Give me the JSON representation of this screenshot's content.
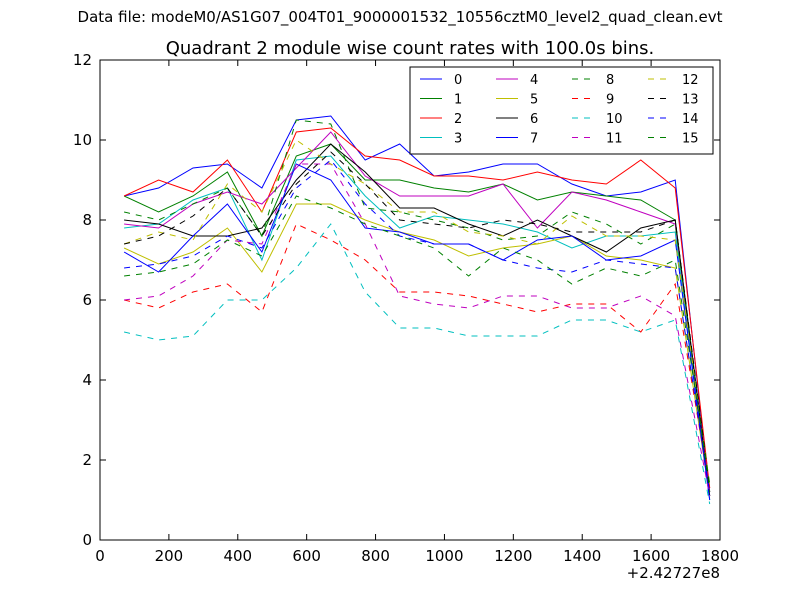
{
  "header": {
    "data_file": "Data file: modeM0/AS1G07_004T01_9000001532_10556cztM0_level2_quad_clean.evt"
  },
  "chart_data": {
    "type": "line",
    "title": "Quadrant 2 module wise count rates with 100.0s bins.",
    "xlabel": "",
    "ylabel": "",
    "x_offset_label": "+2.42727e8",
    "xlim": [
      0,
      1800
    ],
    "ylim": [
      0,
      12
    ],
    "x_ticks": [
      0,
      200,
      400,
      600,
      800,
      1000,
      1200,
      1400,
      1600,
      1800
    ],
    "y_ticks": [
      0,
      2,
      4,
      6,
      8,
      10,
      12
    ],
    "grid": false,
    "legend_placement": "top-right",
    "legend_columns": 4,
    "x": [
      70,
      170,
      270,
      370,
      470,
      570,
      670,
      770,
      870,
      970,
      1070,
      1170,
      1270,
      1370,
      1470,
      1570,
      1670,
      1770
    ],
    "series": [
      {
        "name": "0",
        "color": "#0000ff",
        "dash": "solid",
        "values": [
          8.6,
          8.8,
          9.3,
          9.4,
          8.8,
          10.5,
          10.6,
          9.5,
          9.9,
          9.1,
          9.2,
          9.4,
          9.4,
          8.9,
          8.6,
          8.7,
          9.0,
          1.1
        ]
      },
      {
        "name": "1",
        "color": "#008000",
        "dash": "solid",
        "values": [
          8.6,
          8.2,
          8.6,
          9.2,
          7.6,
          9.6,
          9.9,
          9.0,
          9.0,
          8.8,
          8.7,
          8.9,
          8.5,
          8.7,
          8.6,
          8.5,
          8.0,
          1.2
        ]
      },
      {
        "name": "2",
        "color": "#ff0000",
        "dash": "solid",
        "values": [
          8.6,
          9.0,
          8.7,
          9.5,
          8.2,
          10.2,
          10.3,
          9.6,
          9.5,
          9.1,
          9.1,
          9.0,
          9.2,
          9.0,
          8.9,
          9.5,
          8.8,
          1.3
        ]
      },
      {
        "name": "3",
        "color": "#00bfbf",
        "dash": "solid",
        "values": [
          7.8,
          7.9,
          8.5,
          8.8,
          7.0,
          9.5,
          9.6,
          8.6,
          7.8,
          8.1,
          8.0,
          7.9,
          7.7,
          7.3,
          7.6,
          7.6,
          7.7,
          1.0
        ]
      },
      {
        "name": "4",
        "color": "#bf00bf",
        "dash": "solid",
        "values": [
          7.9,
          7.8,
          8.4,
          8.7,
          8.4,
          9.3,
          10.2,
          9.1,
          8.6,
          8.6,
          8.6,
          8.9,
          7.8,
          8.7,
          8.5,
          8.2,
          7.9,
          1.2
        ]
      },
      {
        "name": "5",
        "color": "#bfbf00",
        "dash": "solid",
        "values": [
          7.3,
          6.9,
          7.2,
          7.8,
          6.7,
          8.4,
          8.4,
          8.0,
          7.7,
          7.5,
          7.1,
          7.3,
          7.4,
          7.6,
          7.1,
          7.0,
          6.8,
          1.1
        ]
      },
      {
        "name": "6",
        "color": "#000000",
        "dash": "solid",
        "values": [
          8.0,
          7.9,
          7.6,
          7.6,
          7.8,
          9.0,
          9.9,
          9.2,
          8.3,
          8.3,
          7.9,
          7.6,
          8.0,
          7.6,
          7.2,
          7.8,
          8.0,
          1.1
        ]
      },
      {
        "name": "7",
        "color": "#0000ff",
        "dash": "solid",
        "values": [
          7.2,
          6.7,
          7.6,
          8.4,
          7.2,
          9.4,
          9.0,
          7.8,
          7.7,
          7.4,
          7.4,
          7.0,
          7.5,
          7.6,
          7.0,
          7.1,
          7.5,
          1.0
        ]
      },
      {
        "name": "8",
        "color": "#008000",
        "dash": "dashed",
        "values": [
          8.2,
          8.0,
          8.4,
          8.8,
          7.6,
          10.5,
          10.4,
          8.3,
          8.2,
          8.0,
          7.8,
          7.5,
          7.6,
          8.2,
          7.9,
          7.4,
          7.9,
          1.2
        ]
      },
      {
        "name": "9",
        "color": "#ff0000",
        "dash": "dashed",
        "values": [
          6.0,
          5.8,
          6.2,
          6.4,
          5.7,
          7.9,
          7.5,
          7.0,
          6.2,
          6.2,
          6.1,
          5.9,
          5.7,
          5.9,
          5.9,
          5.2,
          6.4,
          1.3
        ]
      },
      {
        "name": "10",
        "color": "#00bfbf",
        "dash": "dashed",
        "values": [
          5.2,
          5.0,
          5.1,
          6.0,
          6.0,
          6.8,
          7.9,
          6.2,
          5.3,
          5.3,
          5.1,
          5.1,
          5.1,
          5.5,
          5.5,
          5.2,
          5.5,
          0.9
        ]
      },
      {
        "name": "11",
        "color": "#bf00bf",
        "dash": "dashed",
        "values": [
          6.0,
          6.1,
          6.6,
          7.5,
          7.4,
          9.4,
          9.4,
          7.9,
          6.1,
          5.9,
          5.8,
          6.1,
          6.1,
          5.8,
          5.8,
          6.1,
          5.6,
          1.1
        ]
      },
      {
        "name": "12",
        "color": "#bfbf00",
        "dash": "dashed",
        "values": [
          7.4,
          7.7,
          7.5,
          8.9,
          8.2,
          10.0,
          9.4,
          8.9,
          8.2,
          8.2,
          7.7,
          7.6,
          7.4,
          8.1,
          7.6,
          7.6,
          7.5,
          1.4
        ]
      },
      {
        "name": "13",
        "color": "#000000",
        "dash": "dashed",
        "values": [
          7.4,
          7.6,
          8.1,
          8.8,
          7.6,
          8.9,
          9.7,
          8.9,
          8.0,
          7.9,
          7.8,
          8.0,
          7.9,
          7.7,
          7.7,
          7.7,
          8.0,
          1.3
        ]
      },
      {
        "name": "14",
        "color": "#0000ff",
        "dash": "dashed",
        "values": [
          6.8,
          6.9,
          7.1,
          7.6,
          7.3,
          8.8,
          9.5,
          8.4,
          7.6,
          7.4,
          7.4,
          7.0,
          6.8,
          6.7,
          7.0,
          6.9,
          6.8,
          1.2
        ]
      },
      {
        "name": "15",
        "color": "#008000",
        "dash": "dashed",
        "values": [
          6.6,
          6.7,
          6.9,
          7.5,
          7.1,
          8.6,
          8.3,
          7.9,
          7.6,
          7.3,
          6.6,
          7.3,
          7.0,
          6.4,
          6.8,
          6.6,
          7.0,
          1.4
        ]
      }
    ]
  }
}
